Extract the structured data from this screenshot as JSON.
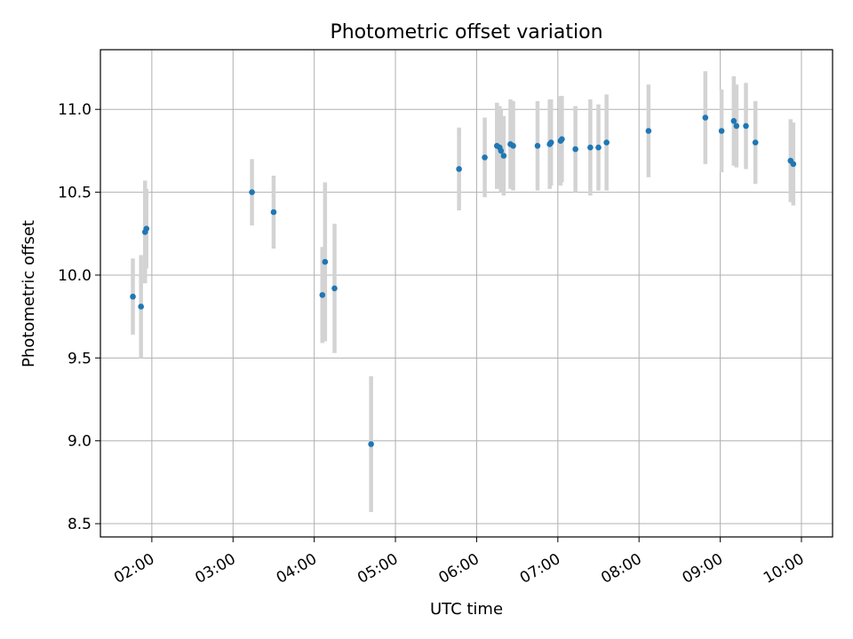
{
  "chart_data": {
    "type": "scatter",
    "title": "Photometric offset variation",
    "xlabel": "UTC time",
    "ylabel": "Photometric offset",
    "xlim": [
      "01:22",
      "10:23"
    ],
    "ylim": [
      8.42,
      11.36
    ],
    "grid": true,
    "x_ticks": [
      "02:00",
      "03:00",
      "04:00",
      "05:00",
      "06:00",
      "07:00",
      "08:00",
      "09:00",
      "10:00"
    ],
    "y_ticks": [
      "8.5",
      "9.0",
      "9.5",
      "10.0",
      "10.5",
      "11.0"
    ],
    "colors": {
      "points": "#1f77b4",
      "errorbars": "#d3d3d3",
      "grid": "#b0b0b0"
    },
    "points": [
      {
        "t": "01:46",
        "y": 9.87,
        "err": 0.23
      },
      {
        "t": "01:52",
        "y": 9.81,
        "err": 0.31
      },
      {
        "t": "01:55",
        "y": 10.26,
        "err": 0.31
      },
      {
        "t": "01:56",
        "y": 10.28,
        "err": 0.24
      },
      {
        "t": "03:14",
        "y": 10.5,
        "err": 0.2
      },
      {
        "t": "03:30",
        "y": 10.38,
        "err": 0.22
      },
      {
        "t": "04:06",
        "y": 9.88,
        "err": 0.29
      },
      {
        "t": "04:08",
        "y": 10.08,
        "err": 0.48
      },
      {
        "t": "04:15",
        "y": 9.92,
        "err": 0.39
      },
      {
        "t": "04:42",
        "y": 8.98,
        "err": 0.41
      },
      {
        "t": "05:47",
        "y": 10.64,
        "err": 0.25
      },
      {
        "t": "06:06",
        "y": 10.71,
        "err": 0.24
      },
      {
        "t": "06:15",
        "y": 10.78,
        "err": 0.26
      },
      {
        "t": "06:17",
        "y": 10.77,
        "err": 0.25
      },
      {
        "t": "06:18",
        "y": 10.75,
        "err": 0.25
      },
      {
        "t": "06:20",
        "y": 10.72,
        "err": 0.24
      },
      {
        "t": "06:25",
        "y": 10.79,
        "err": 0.27
      },
      {
        "t": "06:27",
        "y": 10.78,
        "err": 0.27
      },
      {
        "t": "06:45",
        "y": 10.78,
        "err": 0.27
      },
      {
        "t": "06:54",
        "y": 10.79,
        "err": 0.27
      },
      {
        "t": "06:55",
        "y": 10.8,
        "err": 0.26
      },
      {
        "t": "07:02",
        "y": 10.81,
        "err": 0.27
      },
      {
        "t": "07:03",
        "y": 10.82,
        "err": 0.26
      },
      {
        "t": "07:13",
        "y": 10.76,
        "err": 0.26
      },
      {
        "t": "07:24",
        "y": 10.77,
        "err": 0.29
      },
      {
        "t": "07:30",
        "y": 10.77,
        "err": 0.26
      },
      {
        "t": "07:36",
        "y": 10.8,
        "err": 0.29
      },
      {
        "t": "08:07",
        "y": 10.87,
        "err": 0.28
      },
      {
        "t": "08:49",
        "y": 10.95,
        "err": 0.28
      },
      {
        "t": "09:01",
        "y": 10.87,
        "err": 0.25
      },
      {
        "t": "09:10",
        "y": 10.93,
        "err": 0.27
      },
      {
        "t": "09:12",
        "y": 10.9,
        "err": 0.25
      },
      {
        "t": "09:19",
        "y": 10.9,
        "err": 0.26
      },
      {
        "t": "09:26",
        "y": 10.8,
        "err": 0.25
      },
      {
        "t": "09:52",
        "y": 10.69,
        "err": 0.25
      },
      {
        "t": "09:54",
        "y": 10.67,
        "err": 0.25
      }
    ]
  }
}
